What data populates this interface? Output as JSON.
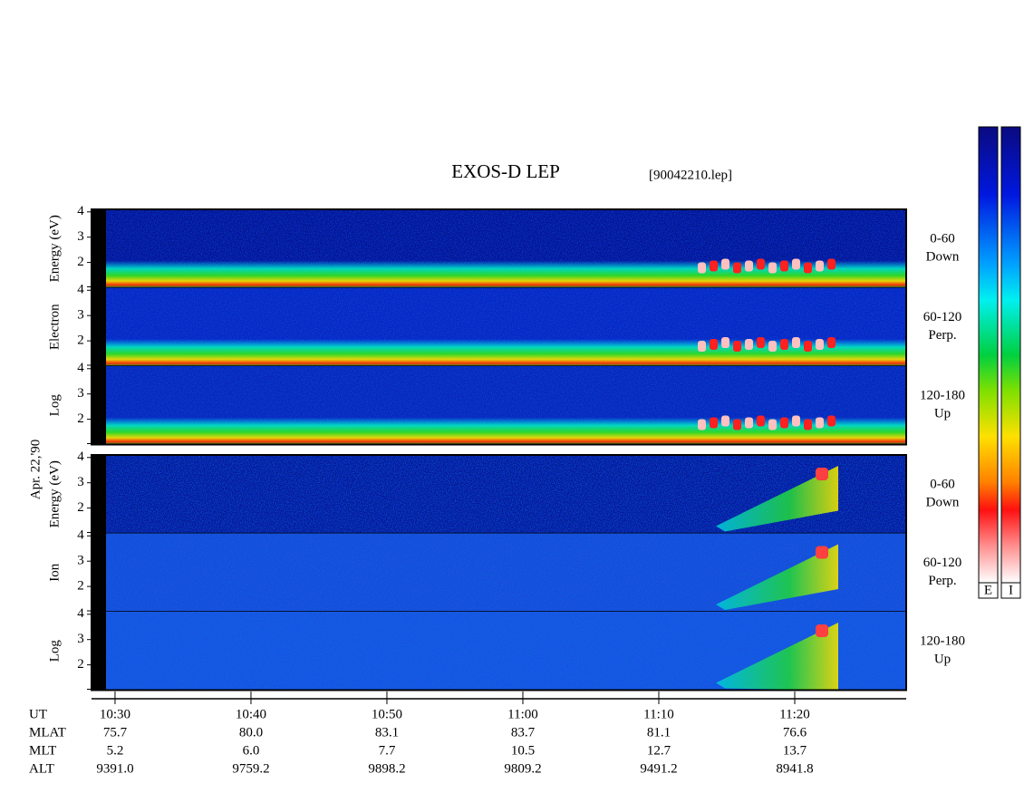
{
  "chart_data": {
    "type": "spectrogram",
    "title": "EXOS-D LEP",
    "file": "[90042210.lep]",
    "date": "Apr. 22,'90",
    "groups": [
      {
        "species": "electron",
        "axis_label": [
          "Log",
          "Electron",
          "Energy (eV)"
        ],
        "panels": [
          {
            "pitch": "0-60",
            "direction": "Down",
            "ylim": [
              1,
              4.1
            ],
            "yticks": [
              2,
              3,
              4
            ]
          },
          {
            "pitch": "60-120",
            "direction": "Perp.",
            "ylim": [
              1,
              4.1
            ],
            "yticks": [
              2,
              3,
              4
            ]
          },
          {
            "pitch": "120-180",
            "direction": "Up",
            "ylim": [
              1,
              4.1
            ],
            "yticks": [
              2,
              3,
              4
            ]
          }
        ]
      },
      {
        "species": "ion",
        "axis_label": [
          "Log",
          "Ion",
          "Energy (eV)"
        ],
        "panels": [
          {
            "pitch": "0-60",
            "direction": "Down",
            "ylim": [
              1,
              4.1
            ],
            "yticks": [
              2,
              3,
              4
            ]
          },
          {
            "pitch": "60-120",
            "direction": "Perp.",
            "ylim": [
              1,
              4.1
            ],
            "yticks": [
              2,
              3,
              4
            ]
          },
          {
            "pitch": "120-180",
            "direction": "Up",
            "ylim": [
              1,
              4.1
            ],
            "yticks": [
              2,
              3,
              4
            ]
          }
        ]
      }
    ],
    "x_label": "UT",
    "xlim": [
      628.27,
      688.2
    ],
    "xticks": [
      {
        "value": 630,
        "label": "10:30"
      },
      {
        "value": 640,
        "label": "10:40"
      },
      {
        "value": 650,
        "label": "10:50"
      },
      {
        "value": 660,
        "label": "11:00"
      },
      {
        "value": 670,
        "label": "11:10"
      },
      {
        "value": 680,
        "label": "11:20"
      }
    ],
    "ephemeris": [
      {
        "name": "MLAT",
        "values": [
          "75.7",
          "80.0",
          "83.1",
          "83.7",
          "81.1",
          "76.6"
        ]
      },
      {
        "name": "MLT",
        "values": [
          "5.2",
          "6.0",
          "7.7",
          "10.5",
          "12.7",
          "13.7"
        ]
      },
      {
        "name": "ALT",
        "values": [
          "9391.0",
          "9759.2",
          "9898.2",
          "9809.2",
          "9491.2",
          "8941.8"
        ]
      }
    ],
    "colorbars": [
      "E",
      "I"
    ]
  }
}
